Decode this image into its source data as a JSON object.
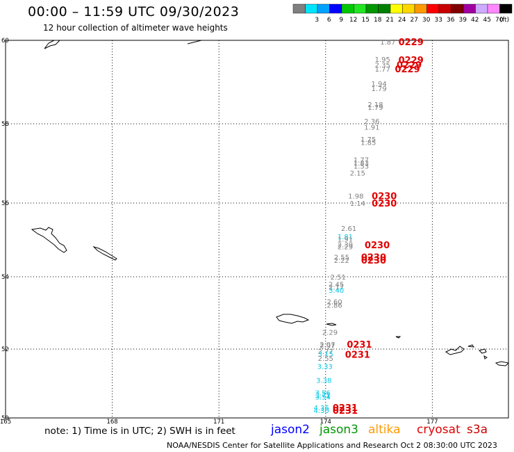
{
  "header": {
    "title": "00:00 – 11:59 UTC 09/30/2023",
    "subtitle": "12 hour collection of altimeter wave heights"
  },
  "color_scale": {
    "unit": "(ft)",
    "bins": [
      {
        "color": "#808080",
        "label": ""
      },
      {
        "color": "#00e5ff",
        "label": "3"
      },
      {
        "color": "#00a2ff",
        "label": "6"
      },
      {
        "color": "#0000ff",
        "label": "9"
      },
      {
        "color": "#00c800",
        "label": "12"
      },
      {
        "color": "#22e622",
        "label": "15"
      },
      {
        "color": "#009600",
        "label": "18"
      },
      {
        "color": "#008000",
        "label": "21"
      },
      {
        "color": "#ffff00",
        "label": "24"
      },
      {
        "color": "#ffd700",
        "label": "27"
      },
      {
        "color": "#ff9900",
        "label": "30"
      },
      {
        "color": "#ff0000",
        "label": "33"
      },
      {
        "color": "#c80000",
        "label": "36"
      },
      {
        "color": "#800000",
        "label": "39"
      },
      {
        "color": "#a000a0",
        "label": "42"
      },
      {
        "color": "#ccaaff",
        "label": "45"
      },
      {
        "color": "#ff88ff",
        "label": "70"
      },
      {
        "color": "#000000",
        "label": ""
      }
    ]
  },
  "axes": {
    "lat_labels": [
      {
        "lat": 60,
        "label": "60"
      },
      {
        "lat": 58,
        "label": "58"
      },
      {
        "lat": 56,
        "label": "56"
      },
      {
        "lat": 54,
        "label": "54"
      },
      {
        "lat": 52,
        "label": "52"
      },
      {
        "lat": 50,
        "label": "50"
      }
    ],
    "lon_labels": [
      {
        "lon": 165,
        "label": "165"
      },
      {
        "lon": 168,
        "label": "168"
      },
      {
        "lon": 171,
        "label": "171"
      },
      {
        "lon": 174,
        "label": "174"
      },
      {
        "lon": 177,
        "label": "177"
      }
    ]
  },
  "observations": [
    {
      "lon": 175.75,
      "lat": 59.95,
      "value": "1.87",
      "color": "#808080"
    },
    {
      "lon": 175.6,
      "lat": 59.53,
      "value": "1.95",
      "color": "#808080"
    },
    {
      "lon": 175.6,
      "lat": 59.4,
      "value": "2.35",
      "color": "#808080"
    },
    {
      "lon": 175.6,
      "lat": 59.3,
      "value": "1.77",
      "color": "#808080"
    },
    {
      "lon": 175.5,
      "lat": 58.95,
      "value": "1.94",
      "color": "#808080"
    },
    {
      "lon": 175.5,
      "lat": 58.83,
      "value": "1.79",
      "color": "#808080"
    },
    {
      "lon": 175.4,
      "lat": 58.45,
      "value": "2.18",
      "color": "#808080"
    },
    {
      "lon": 175.4,
      "lat": 58.38,
      "value": "1.79",
      "color": "#808080"
    },
    {
      "lon": 175.3,
      "lat": 58.05,
      "value": "2.36",
      "color": "#808080"
    },
    {
      "lon": 175.3,
      "lat": 57.9,
      "value": "1.91",
      "color": "#808080"
    },
    {
      "lon": 175.2,
      "lat": 57.6,
      "value": "1.75",
      "color": "#808080"
    },
    {
      "lon": 175.2,
      "lat": 57.52,
      "value": "1.85",
      "color": "#808080"
    },
    {
      "lon": 175.0,
      "lat": 57.08,
      "value": "1.77",
      "color": "#808080"
    },
    {
      "lon": 175.0,
      "lat": 57.0,
      "value": "1.83",
      "color": "#808080"
    },
    {
      "lon": 175.0,
      "lat": 56.92,
      "value": "1.53",
      "color": "#808080"
    },
    {
      "lon": 174.9,
      "lat": 56.75,
      "value": "2.15",
      "color": "#808080"
    },
    {
      "lon": 174.85,
      "lat": 56.17,
      "value": "1.98",
      "color": "#808080"
    },
    {
      "lon": 174.9,
      "lat": 55.98,
      "value": "1.14",
      "color": "#808080"
    },
    {
      "lon": 174.65,
      "lat": 55.3,
      "value": "2.61",
      "color": "#808080"
    },
    {
      "lon": 174.55,
      "lat": 55.08,
      "value": "1.81",
      "color": "#00c8e6"
    },
    {
      "lon": 174.55,
      "lat": 55.01,
      "value": "1.91",
      "color": "#808080"
    },
    {
      "lon": 174.55,
      "lat": 54.86,
      "value": "2.39",
      "color": "#808080"
    },
    {
      "lon": 174.55,
      "lat": 54.8,
      "value": "2.29",
      "color": "#808080"
    },
    {
      "lon": 174.45,
      "lat": 54.52,
      "value": "2.55",
      "color": "#808080"
    },
    {
      "lon": 174.45,
      "lat": 54.43,
      "value": "2.22",
      "color": "#808080"
    },
    {
      "lon": 174.35,
      "lat": 53.98,
      "value": "2.51",
      "color": "#808080"
    },
    {
      "lon": 174.3,
      "lat": 53.78,
      "value": "2.45",
      "color": "#808080"
    },
    {
      "lon": 174.3,
      "lat": 53.7,
      "value": "2.17",
      "color": "#808080"
    },
    {
      "lon": 174.3,
      "lat": 53.62,
      "value": "3.40",
      "color": "#00c8e6"
    },
    {
      "lon": 174.25,
      "lat": 53.3,
      "value": "2.60",
      "color": "#808080"
    },
    {
      "lon": 174.25,
      "lat": 53.2,
      "value": "2.86",
      "color": "#808080"
    },
    {
      "lon": 174.12,
      "lat": 52.45,
      "value": "2.29",
      "color": "#808080"
    },
    {
      "lon": 174.05,
      "lat": 52.12,
      "value": "2.07",
      "color": "#808080"
    },
    {
      "lon": 174.05,
      "lat": 52.08,
      "value": "2.97",
      "color": "#808080"
    },
    {
      "lon": 174.0,
      "lat": 51.92,
      "value": "2.77",
      "color": "#808080"
    },
    {
      "lon": 174.0,
      "lat": 51.85,
      "value": "3.15",
      "color": "#00c8e6"
    },
    {
      "lon": 174.0,
      "lat": 51.72,
      "value": "2.55",
      "color": "#808080"
    },
    {
      "lon": 173.98,
      "lat": 51.48,
      "value": "3.33",
      "color": "#00c8e6"
    },
    {
      "lon": 173.95,
      "lat": 51.08,
      "value": "3.38",
      "color": "#00c8e6"
    },
    {
      "lon": 173.92,
      "lat": 50.72,
      "value": "3.56",
      "color": "#00c8e6"
    },
    {
      "lon": 173.92,
      "lat": 50.65,
      "value": "3.71",
      "color": "#00c8e6"
    },
    {
      "lon": 173.92,
      "lat": 50.6,
      "value": "3.54",
      "color": "#00c8e6"
    },
    {
      "lon": 173.88,
      "lat": 50.28,
      "value": "4.36",
      "color": "#00c8e6"
    },
    {
      "lon": 173.88,
      "lat": 50.2,
      "value": "4.30",
      "color": "#00c8e6"
    }
  ],
  "pass_times": [
    {
      "lon": 176.4,
      "lat": 59.95,
      "label": "0229"
    },
    {
      "lon": 176.4,
      "lat": 59.52,
      "label": "0229"
    },
    {
      "lon": 176.35,
      "lat": 59.4,
      "label": "0229"
    },
    {
      "lon": 176.3,
      "lat": 59.3,
      "label": "0229"
    },
    {
      "lon": 175.65,
      "lat": 56.17,
      "label": "0230"
    },
    {
      "lon": 175.65,
      "lat": 55.98,
      "label": "0230"
    },
    {
      "lon": 175.45,
      "lat": 54.85,
      "label": "0230"
    },
    {
      "lon": 175.35,
      "lat": 54.52,
      "label": "0230"
    },
    {
      "lon": 175.35,
      "lat": 54.43,
      "label": "0230"
    },
    {
      "lon": 174.95,
      "lat": 52.12,
      "label": "0231"
    },
    {
      "lon": 174.9,
      "lat": 51.83,
      "label": "0231"
    },
    {
      "lon": 174.55,
      "lat": 50.28,
      "label": "0231"
    },
    {
      "lon": 174.55,
      "lat": 50.2,
      "label": "0231"
    }
  ],
  "footer": {
    "note": "note: 1) Time is in UTC; 2) SWH is in feet",
    "credit": "NOAA/NESDIS Center for Satellite Applications and Research   Oct  2 08:30:00 UTC 2023",
    "satellites": [
      {
        "label": "jason2",
        "color": "#0000ff"
      },
      {
        "label": "jason3",
        "color": "#009600"
      },
      {
        "label": "altika",
        "color": "#ff9900"
      },
      {
        "label": "cryosat",
        "color": "#e00000"
      },
      {
        "label": "s3a",
        "color": "#c80000"
      }
    ]
  }
}
